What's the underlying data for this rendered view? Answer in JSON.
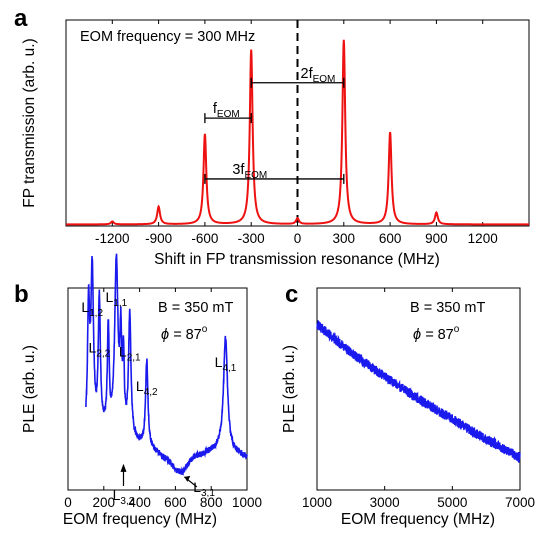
{
  "colors": {
    "red": "#ee1111",
    "blue": "#1a1aee",
    "axis": "#000000"
  },
  "chart_data": [
    {
      "panel": "a",
      "type": "line",
      "xlabel": "Shift in FP transmission resonance (MHz)",
      "ylabel": "FP transmission (arb. u.)",
      "xlim": [
        -1500,
        1500
      ],
      "ylim": [
        0,
        1.05
      ],
      "xticks": [
        -1200,
        -900,
        -600,
        -300,
        0,
        300,
        600,
        900,
        1200
      ],
      "annotation": "EOM frequency = 300 MHz",
      "dashed_vline_x": 0,
      "peaks": [
        {
          "x": -1200,
          "y": 0.015
        },
        {
          "x": -900,
          "y": 0.09
        },
        {
          "x": -600,
          "y": 0.46
        },
        {
          "x": -300,
          "y": 0.89
        },
        {
          "x": 0,
          "y": 0.03
        },
        {
          "x": 300,
          "y": 0.94
        },
        {
          "x": 600,
          "y": 0.47
        },
        {
          "x": 900,
          "y": 0.06
        }
      ],
      "brackets": [
        {
          "label": "f",
          "sub": "EOM",
          "x1": -600,
          "x2": -300,
          "y": 0.55
        },
        {
          "label": "2f",
          "sub": "EOM",
          "x1": -300,
          "x2": 300,
          "y": 0.73
        },
        {
          "label": "3f",
          "sub": "EOM",
          "x1": -600,
          "x2": 300,
          "y": 0.24
        }
      ]
    },
    {
      "panel": "b",
      "type": "line",
      "xlabel": "EOM frequency (MHz)",
      "ylabel": "PLE (arb. u.)",
      "xlim": [
        0,
        1000
      ],
      "ylim": [
        0,
        1
      ],
      "xticks": [
        0,
        200,
        400,
        600,
        800,
        1000
      ],
      "annotations": [
        "B = 350 mT",
        "87"
      ],
      "phi_symbol": "ϕ =",
      "degree_symbol": "o",
      "baseline": [
        [
          100,
          0.25
        ],
        [
          200,
          0.28
        ],
        [
          300,
          0.27
        ],
        [
          400,
          0.22
        ],
        [
          500,
          0.18
        ],
        [
          560,
          0.14
        ],
        [
          610,
          0.09
        ],
        [
          640,
          0.085
        ],
        [
          660,
          0.11
        ],
        [
          700,
          0.16
        ],
        [
          800,
          0.19
        ],
        [
          860,
          0.21
        ],
        [
          1000,
          0.16
        ]
      ],
      "peaks": [
        {
          "x": 115,
          "y": 0.6,
          "w": 7
        },
        {
          "x": 135,
          "y": 0.8,
          "w": 9
        },
        {
          "x": 175,
          "y": 0.64,
          "w": 7
        },
        {
          "x": 225,
          "y": 0.49,
          "w": 6
        },
        {
          "x": 270,
          "y": 0.84,
          "w": 11
        },
        {
          "x": 295,
          "y": 0.43,
          "w": 6
        },
        {
          "x": 310,
          "y": 0.34,
          "w": 5
        },
        {
          "x": 345,
          "y": 0.6,
          "w": 8
        },
        {
          "x": 440,
          "y": 0.43,
          "w": 8
        },
        {
          "x": 880,
          "y": 0.55,
          "w": 13
        }
      ],
      "peak_labels": [
        {
          "L": "L",
          "sub": "1,2",
          "x": 135,
          "y": 0.88
        },
        {
          "L": "L",
          "sub": "2,2",
          "x": 175,
          "y": 0.68
        },
        {
          "L": "L",
          "sub": "1,1",
          "x": 270,
          "y": 0.93
        },
        {
          "L": "L",
          "sub": "2,1",
          "x": 345,
          "y": 0.66
        },
        {
          "L": "L",
          "sub": "4,2",
          "x": 440,
          "y": 0.49
        },
        {
          "L": "L",
          "sub": "4,1",
          "x": 880,
          "y": 0.61
        },
        {
          "L": "L",
          "sub": "3,2",
          "x": 310,
          "y": -0.05
        },
        {
          "L": "L",
          "sub": "3,1",
          "x": 760,
          "y": -0.01
        }
      ]
    },
    {
      "panel": "c",
      "type": "line",
      "xlabel": "EOM frequency (MHz)",
      "ylabel": "PLE (arb. u.)",
      "xlim": [
        1000,
        7000
      ],
      "ylim": [
        0,
        1
      ],
      "xticks": [
        1000,
        3000,
        5000,
        7000
      ],
      "annotations": [
        "B = 350 mT",
        "87"
      ],
      "phi_symbol": "ϕ =",
      "degree_symbol": "o",
      "trend": [
        [
          1000,
          0.82
        ],
        [
          2000,
          0.68
        ],
        [
          3000,
          0.56
        ],
        [
          4000,
          0.45
        ],
        [
          5000,
          0.35
        ],
        [
          6000,
          0.25
        ],
        [
          7000,
          0.16
        ]
      ]
    }
  ]
}
